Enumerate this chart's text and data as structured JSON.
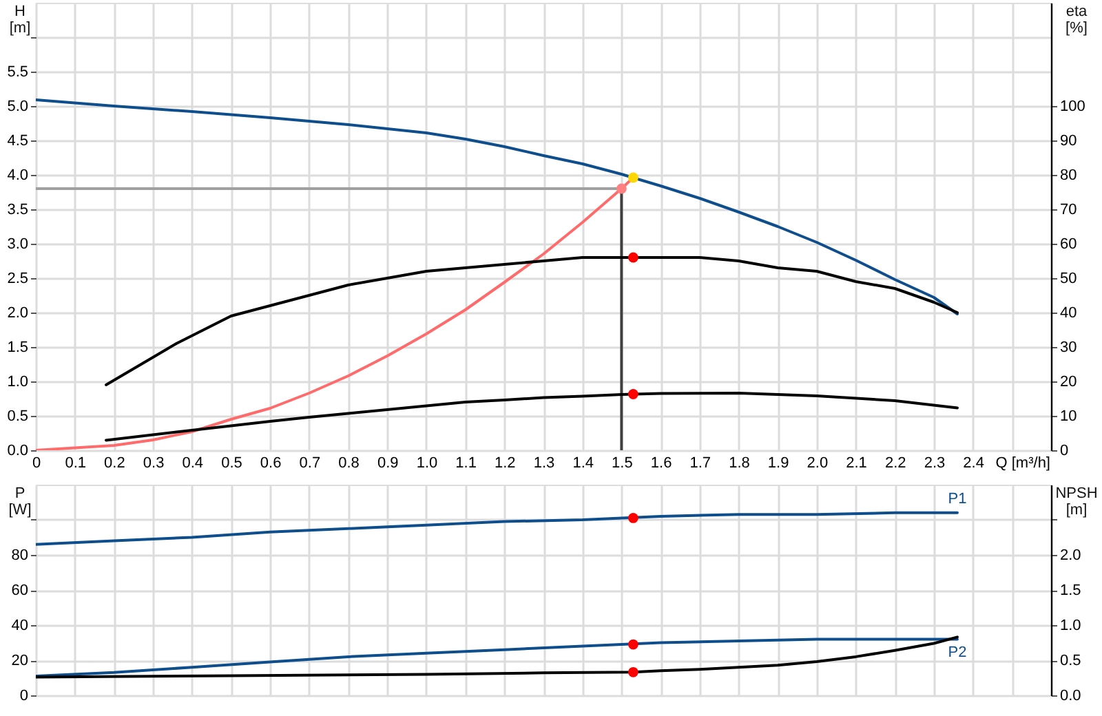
{
  "chart_data": [
    {
      "type": "line",
      "xlabel": "Q [m³/h]",
      "ylabel": "H\n[m]",
      "y2label": "eta\n[%]",
      "xlim": [
        0,
        2.6
      ],
      "xticks": [
        0,
        0.1,
        0.2,
        0.3,
        0.4,
        0.5,
        0.6,
        0.7,
        0.8,
        0.9,
        {
          "value": 1,
          "label": "1.0"
        },
        1.1,
        1.2,
        1.3,
        1.4,
        1.5,
        1.6,
        1.7,
        1.8,
        1.9,
        {
          "value": 2,
          "label": "2.0"
        },
        2.1,
        2.2,
        2.3,
        2.4,
        {
          "value": 2.5,
          "label": null
        }
      ],
      "ylim": [
        0,
        6.5
      ],
      "yticks": [
        {
          "value": 0,
          "label": "0.0"
        },
        0.5,
        {
          "value": 1,
          "label": "1.0"
        },
        1.5,
        {
          "value": 2,
          "label": "2.0"
        },
        2.5,
        {
          "value": 3,
          "label": "3.0"
        },
        3.5,
        {
          "value": 4,
          "label": "4.0"
        },
        4.5,
        {
          "value": 5,
          "label": "5.0"
        },
        5.5,
        {
          "value": 6,
          "label": null
        }
      ],
      "y2lim": [
        0,
        130
      ],
      "y2ticks": [
        0,
        10,
        20,
        30,
        40,
        50,
        60,
        70,
        80,
        90,
        100
      ],
      "grid": true,
      "series": [
        {
          "color": "#a0a0a0",
          "x": [
            0,
            1.5
          ],
          "values": [
            3.8,
            3.8
          ]
        },
        {
          "color": "#404040",
          "x": [
            1.5,
            1.5
          ],
          "values": [
            3.8,
            0
          ]
        },
        {
          "color": "#ff6b6b",
          "x": [
            0,
            0.2,
            0.3,
            0.4,
            0.5,
            0.6,
            0.7,
            0.8,
            0.9,
            1.0,
            1.1,
            1.2,
            1.3,
            1.4,
            1.5,
            1.53
          ],
          "values": [
            0,
            0.07,
            0.15,
            0.27,
            0.45,
            0.61,
            0.83,
            1.08,
            1.37,
            1.69,
            2.04,
            2.44,
            2.85,
            3.31,
            3.8,
            3.96
          ]
        },
        {
          "color": "#0e4e8c",
          "x": [
            0,
            0.2,
            0.4,
            0.6,
            0.8,
            1.0,
            1.1,
            1.2,
            1.3,
            1.4,
            1.5,
            1.6,
            1.7,
            1.8,
            1.9,
            2.0,
            2.1,
            2.2,
            2.3,
            2.36
          ],
          "values": [
            5.09,
            5.0,
            4.92,
            4.83,
            4.73,
            4.61,
            4.52,
            4.41,
            4.28,
            4.16,
            4.01,
            3.84,
            3.66,
            3.46,
            3.25,
            3.02,
            2.76,
            2.48,
            2.22,
            1.98
          ]
        },
        {
          "color": "#000000",
          "axis": "y2",
          "x": [
            0.18,
            0.36,
            0.5,
            0.6,
            0.7,
            0.8,
            0.9,
            1.0,
            1.1,
            1.2,
            1.3,
            1.4,
            1.5,
            1.6,
            1.7,
            1.8,
            1.9,
            2.0,
            2.1,
            2.2,
            2.3,
            2.36
          ],
          "values": [
            19,
            31,
            39,
            42,
            45,
            48,
            50,
            52,
            53,
            54,
            55,
            56,
            56,
            56,
            56,
            55,
            53,
            52,
            49,
            47,
            43,
            40
          ]
        },
        {
          "color": "#000000",
          "axis": "y2",
          "x": [
            0.18,
            0.36,
            0.5,
            0.6,
            0.7,
            0.8,
            0.9,
            1.0,
            1.1,
            1.2,
            1.3,
            1.4,
            1.5,
            1.6,
            1.8,
            2.0,
            2.2,
            2.36
          ],
          "values": [
            2.9,
            5.3,
            7.1,
            8.4,
            9.6,
            10.7,
            11.8,
            12.9,
            14.0,
            14.6,
            15.3,
            15.7,
            16.2,
            16.5,
            16.6,
            15.8,
            14.4,
            12.3
          ]
        },
        {
          "type": "scatter",
          "marker": "circle",
          "color": "#ff8080",
          "x": [
            1.5
          ],
          "values": [
            3.8
          ]
        },
        {
          "type": "scatter",
          "marker": "circle",
          "color": "#ffd700",
          "x": [
            1.53
          ],
          "values": [
            3.96
          ]
        },
        {
          "type": "scatter",
          "marker": "circle",
          "color": "#ff0000",
          "axis": "y2",
          "x": [
            1.53,
            1.53
          ],
          "values": [
            56,
            16.3
          ]
        }
      ]
    },
    {
      "type": "line",
      "ylabel": "P\n[W]",
      "y2label": "NPSH\n[m]",
      "xlim": [
        0,
        2.6
      ],
      "xticks": [
        0,
        0.1,
        0.2,
        0.3,
        0.4,
        0.5,
        0.6,
        0.7,
        0.8,
        0.9,
        1,
        1.1,
        1.2,
        1.3,
        1.4,
        1.5,
        1.6,
        1.7,
        1.8,
        1.9,
        2,
        2.1,
        2.2,
        2.3,
        2.4,
        2.5
      ],
      "ylim": [
        0,
        120
      ],
      "yticks": [
        0,
        20,
        40,
        60,
        80,
        {
          "value": 100,
          "label": null
        }
      ],
      "y2lim": [
        0,
        3
      ],
      "y2ticks": [
        {
          "value": 0,
          "label": "0.0"
        },
        0.5,
        {
          "value": 1,
          "label": "1.0"
        },
        1.5,
        {
          "value": 2,
          "label": "2.0"
        },
        {
          "value": 2.5,
          "label": null
        }
      ],
      "tick_labels": "y",
      "grid": true,
      "series": [
        {
          "name": "P1",
          "color": "#0e4e8c",
          "x": [
            0,
            0.2,
            0.4,
            0.6,
            0.8,
            1.0,
            1.2,
            1.4,
            1.6,
            1.8,
            2.0,
            2.2,
            2.36
          ],
          "values": [
            86,
            88,
            90,
            93,
            95,
            97,
            99,
            100,
            102,
            103,
            103,
            104,
            104
          ]
        },
        {
          "name": "P2",
          "color": "#0e4e8c",
          "x": [
            0,
            0.2,
            0.4,
            0.6,
            0.8,
            1.0,
            1.2,
            1.4,
            1.6,
            1.8,
            2.0,
            2.2,
            2.36
          ],
          "values": [
            11,
            13,
            16,
            19,
            22,
            24,
            26,
            28,
            30,
            31,
            32,
            32,
            32
          ]
        },
        {
          "color": "#000000",
          "axis": "y2",
          "x": [
            0,
            0.5,
            1.0,
            1.3,
            1.53,
            1.6,
            1.7,
            1.8,
            1.9,
            2.0,
            2.1,
            2.2,
            2.3,
            2.36
          ],
          "values": [
            0.26,
            0.28,
            0.3,
            0.32,
            0.33,
            0.35,
            0.37,
            0.4,
            0.43,
            0.48,
            0.55,
            0.64,
            0.74,
            0.83
          ]
        },
        {
          "type": "scatter",
          "marker": "circle",
          "color": "#ff0000",
          "x": [
            1.53,
            1.53
          ],
          "values": [
            101,
            29
          ]
        },
        {
          "type": "scatter",
          "marker": "circle",
          "color": "#ff0000",
          "axis": "y2",
          "x": [
            1.53
          ],
          "values": [
            0.33
          ]
        }
      ]
    }
  ]
}
